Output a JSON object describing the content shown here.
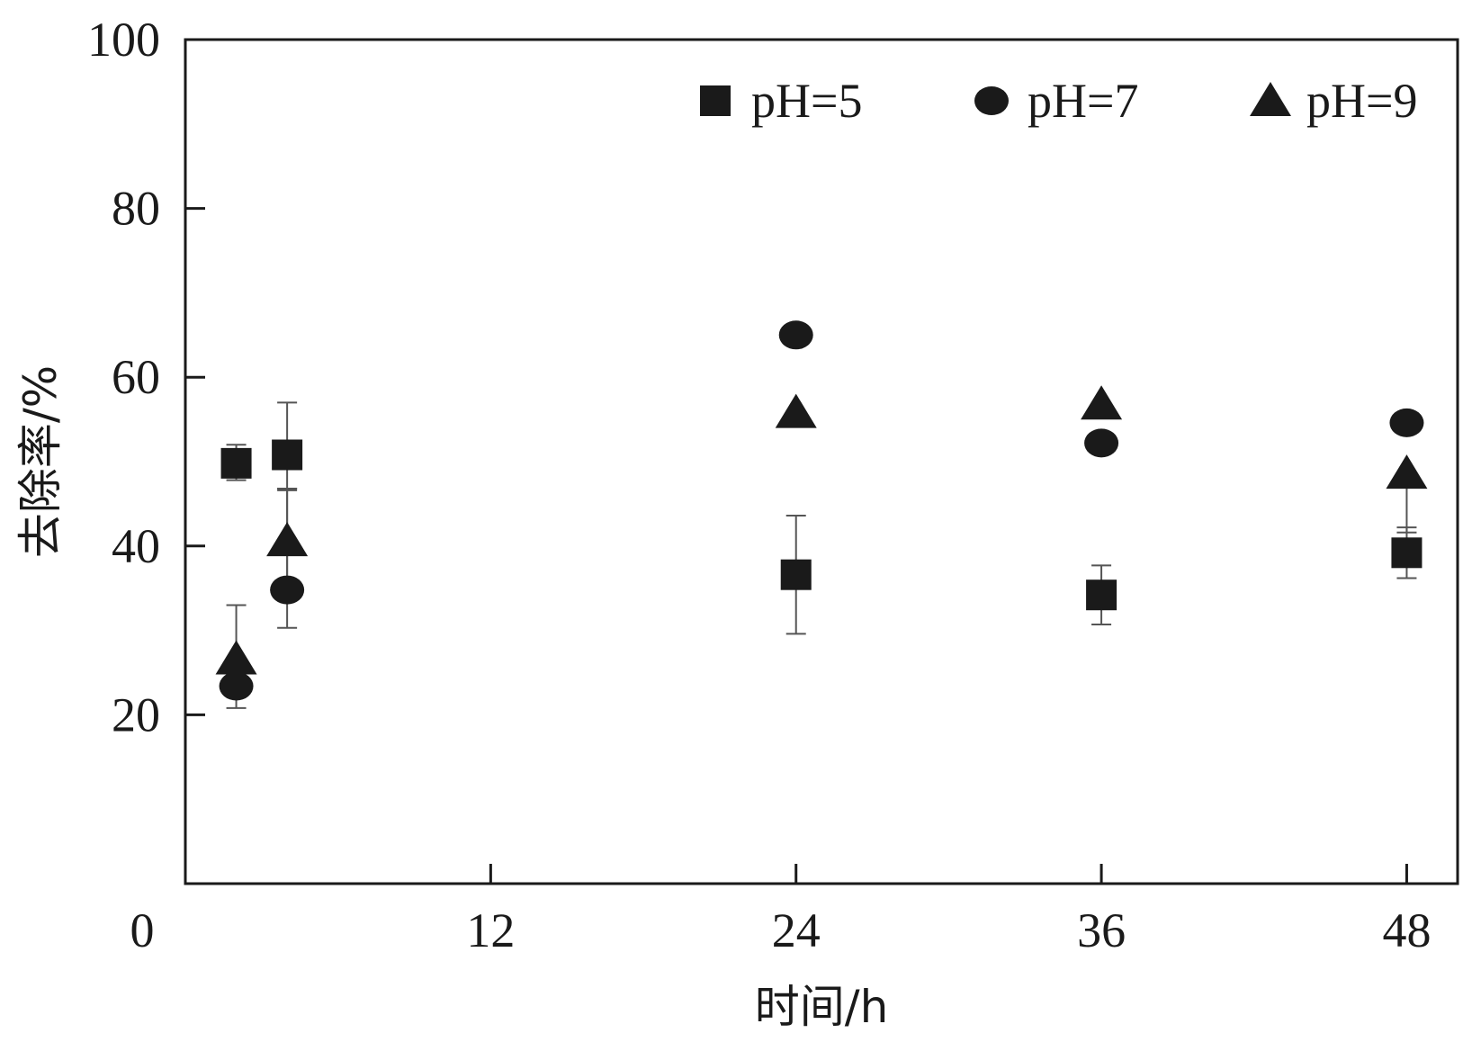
{
  "chart_data": {
    "type": "scatter",
    "title": "",
    "xlabel": "时间/h",
    "ylabel": "去除率/%",
    "xlim": [
      0,
      50
    ],
    "ylim": [
      0,
      100
    ],
    "x_ticks": [
      0,
      12,
      24,
      36,
      48
    ],
    "y_ticks": [
      20,
      40,
      60,
      80,
      100
    ],
    "grid": false,
    "legend_position": "top-right",
    "series": [
      {
        "name": "pH=5",
        "marker": "square",
        "color": "#1a1a1a",
        "points": [
          {
            "x": 2,
            "y": 49.8,
            "err_low": 2.0,
            "err_high": 2.2
          },
          {
            "x": 4,
            "y": 50.8,
            "err_low": 4.0,
            "err_high": 6.2
          },
          {
            "x": 24,
            "y": 36.6,
            "err_low": 7.0,
            "err_high": 7.0
          },
          {
            "x": 36,
            "y": 34.2,
            "err_low": 3.5,
            "err_high": 3.5
          },
          {
            "x": 48,
            "y": 39.2,
            "err_low": 3.0,
            "err_high": 3.0
          }
        ]
      },
      {
        "name": "pH=7",
        "marker": "circle",
        "color": "#1a1a1a",
        "points": [
          {
            "x": 2,
            "y": 23.4,
            "err_low": 2.6,
            "err_high": 2.6
          },
          {
            "x": 4,
            "y": 34.8,
            "err_low": 4.5,
            "err_high": 12.0
          },
          {
            "x": 24,
            "y": 65.0,
            "err_low": 0,
            "err_high": 0
          },
          {
            "x": 36,
            "y": 52.2,
            "err_low": 0,
            "err_high": 0
          },
          {
            "x": 48,
            "y": 54.6,
            "err_low": 0,
            "err_high": 0
          }
        ]
      },
      {
        "name": "pH=9",
        "marker": "triangle",
        "color": "#1a1a1a",
        "points": [
          {
            "x": 2,
            "y": 26.6,
            "err_low": 0,
            "err_high": 6.4
          },
          {
            "x": 4,
            "y": 40.6,
            "err_low": 6.0,
            "err_high": 6.0
          },
          {
            "x": 24,
            "y": 55.8,
            "err_low": 0,
            "err_high": 0
          },
          {
            "x": 36,
            "y": 56.8,
            "err_low": 0,
            "err_high": 0
          },
          {
            "x": 48,
            "y": 48.6,
            "err_low": 7.0,
            "err_high": 0
          }
        ]
      }
    ]
  }
}
